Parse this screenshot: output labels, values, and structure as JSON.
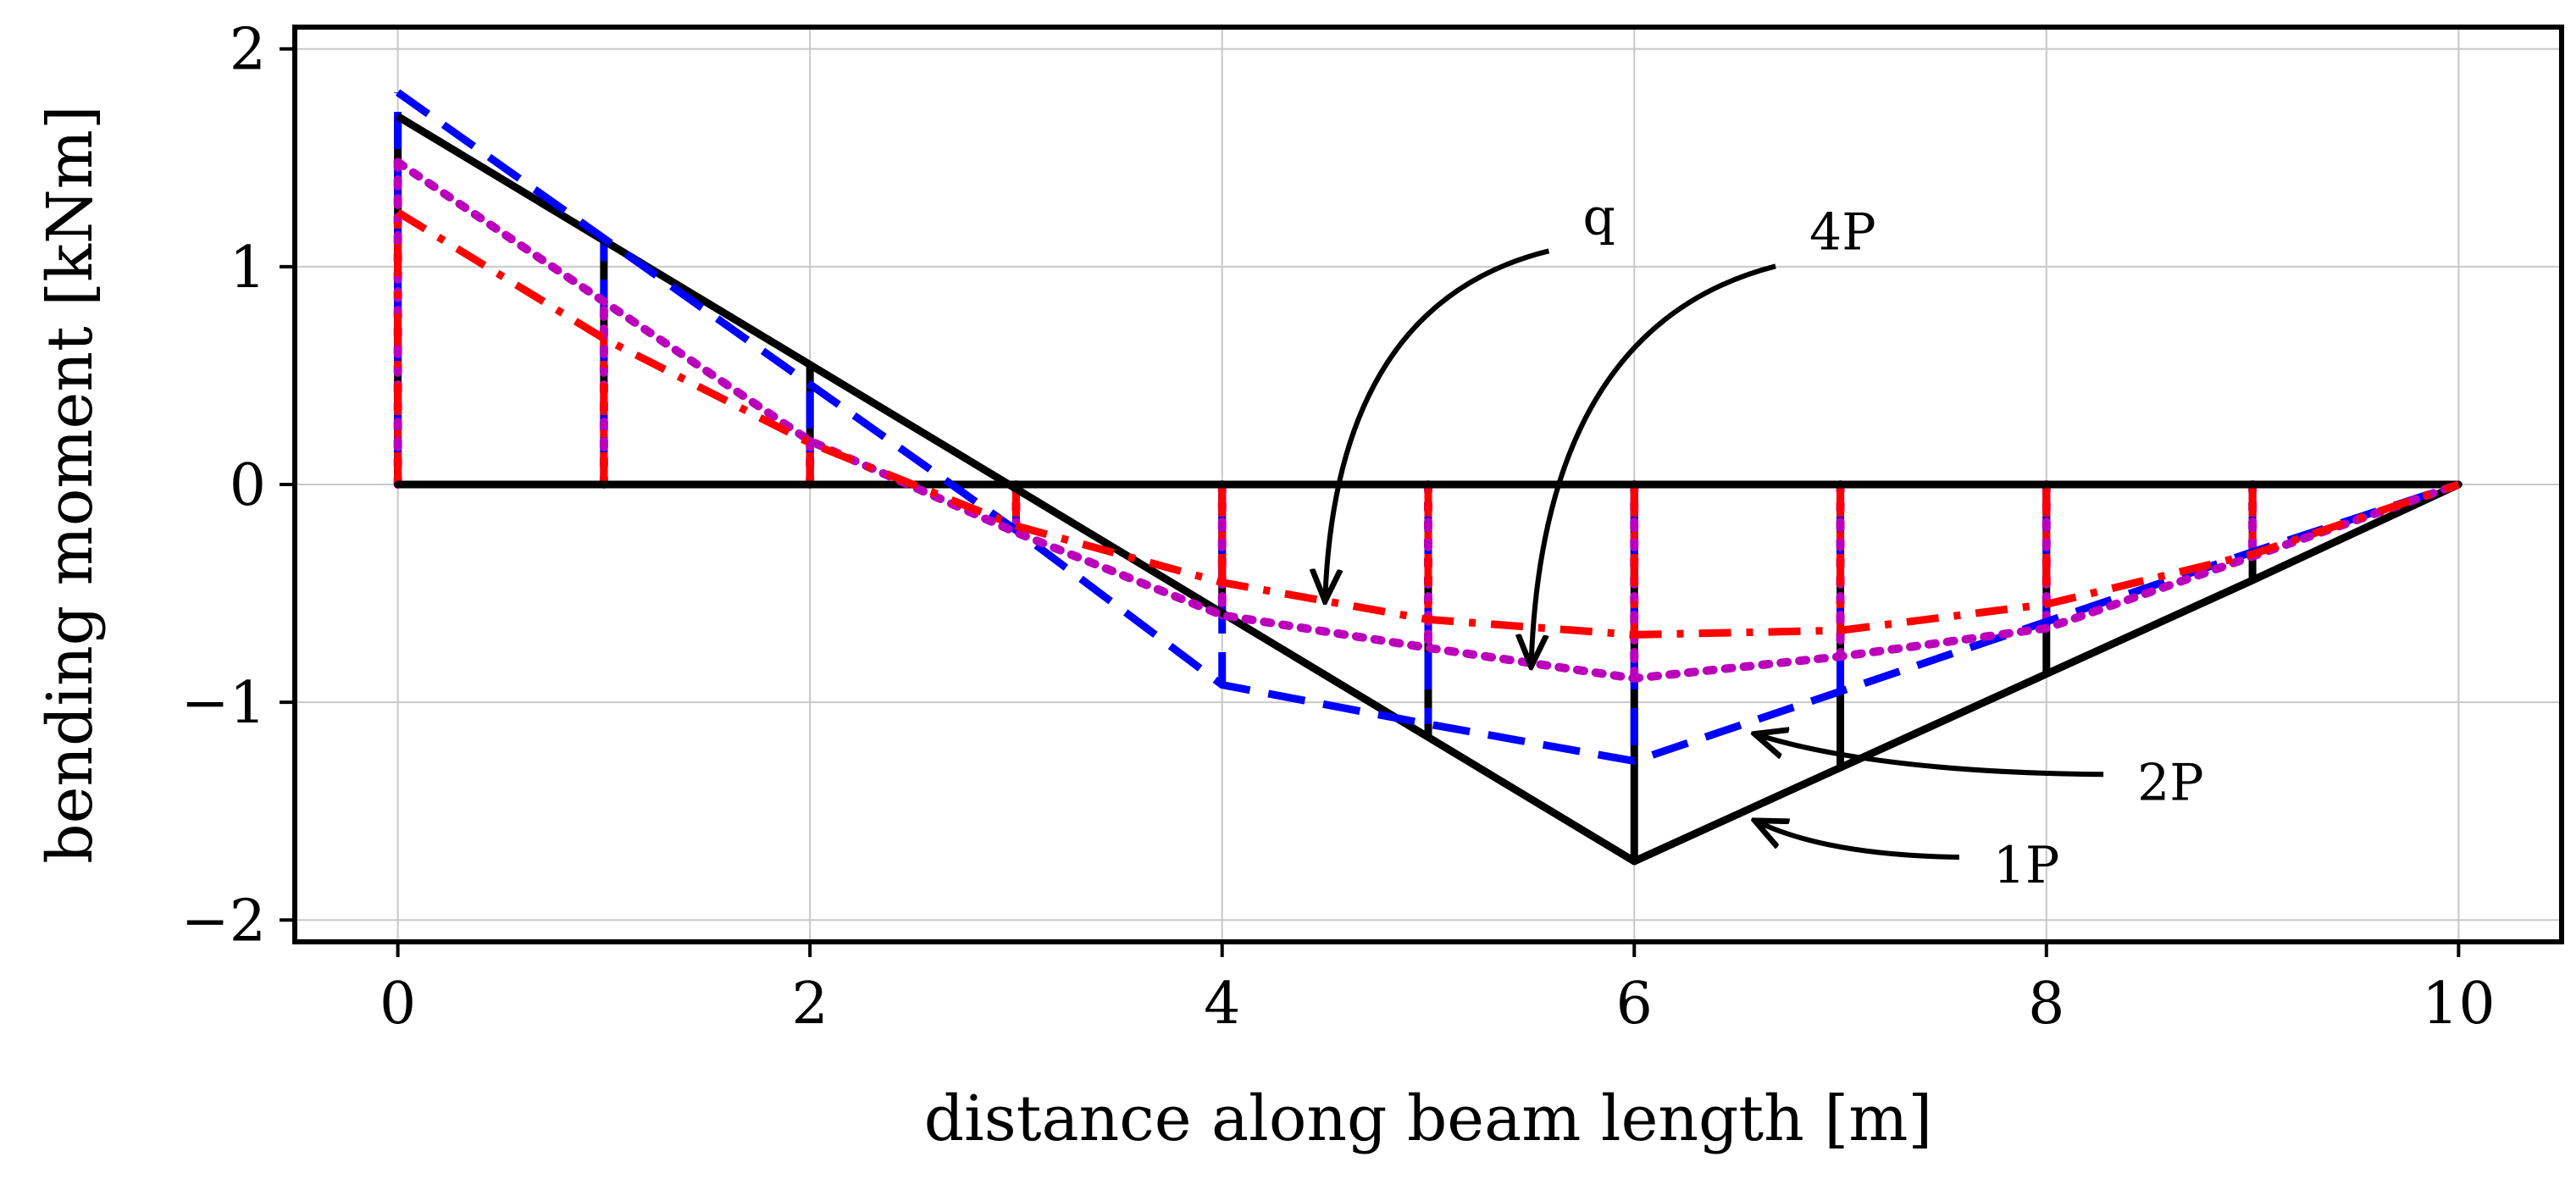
{
  "chart_data": {
    "type": "line",
    "title": "",
    "xlabel": "distance along beam length [m]",
    "ylabel": "bending moment [kNm]",
    "xlim": [
      -0.5,
      10.5
    ],
    "ylim": [
      -2.1,
      2.1
    ],
    "grid": true,
    "xticks": [
      0,
      2,
      4,
      6,
      8,
      10
    ],
    "yticks": [
      -2,
      -1,
      0,
      1,
      2
    ],
    "xtick_labels": [
      "0",
      "2",
      "4",
      "6",
      "8",
      "10"
    ],
    "ytick_labels": [
      "−2",
      "−1",
      "0",
      "1",
      "2"
    ],
    "baseline": {
      "x": [
        0,
        10
      ],
      "y": [
        0,
        0
      ],
      "color": "#000000"
    },
    "series": [
      {
        "name": "1P",
        "style": "solid",
        "color": "#000000",
        "x": [
          0,
          1,
          2,
          3,
          4,
          5,
          6,
          7,
          8,
          9,
          10
        ],
        "y": [
          1.69,
          1.12,
          0.55,
          -0.02,
          -0.59,
          -1.16,
          -1.73,
          -1.3,
          -0.87,
          -0.44,
          0
        ]
      },
      {
        "name": "2P",
        "style": "dashed",
        "color": "#0000ff",
        "x": [
          0,
          1,
          2,
          3,
          4,
          5,
          6,
          7,
          8,
          9,
          10
        ],
        "y": [
          1.8,
          1.13,
          0.46,
          -0.21,
          -0.92,
          -1.1,
          -1.27,
          -0.95,
          -0.63,
          -0.31,
          0
        ]
      },
      {
        "name": "4P",
        "style": "dotted",
        "color": "#bb00bb",
        "x": [
          0,
          1,
          2,
          3,
          4,
          5,
          6,
          7,
          8,
          9,
          10
        ],
        "y": [
          1.48,
          0.84,
          0.2,
          -0.22,
          -0.6,
          -0.75,
          -0.89,
          -0.79,
          -0.66,
          -0.33,
          0
        ]
      },
      {
        "name": "q",
        "style": "dashdot",
        "color": "#ff0000",
        "x": [
          0,
          1,
          2,
          3,
          4,
          5,
          6,
          7,
          8,
          9,
          10
        ],
        "y": [
          1.25,
          0.67,
          0.19,
          -0.19,
          -0.45,
          -0.62,
          -0.69,
          -0.67,
          -0.55,
          -0.32,
          0
        ]
      }
    ],
    "annotations": [
      {
        "label": "q",
        "text_at": [
          5.75,
          1.15
        ],
        "points_to": [
          4.5,
          -0.52
        ]
      },
      {
        "label": "4P",
        "text_at": [
          6.85,
          1.08
        ],
        "points_to": [
          5.5,
          -0.82
        ]
      },
      {
        "label": "2P",
        "text_at": [
          8.4,
          -1.37
        ],
        "points_to": [
          6.6,
          -1.15
        ]
      },
      {
        "label": "1P",
        "text_at": [
          7.7,
          -1.75
        ],
        "points_to": [
          6.6,
          -1.55
        ]
      }
    ]
  }
}
